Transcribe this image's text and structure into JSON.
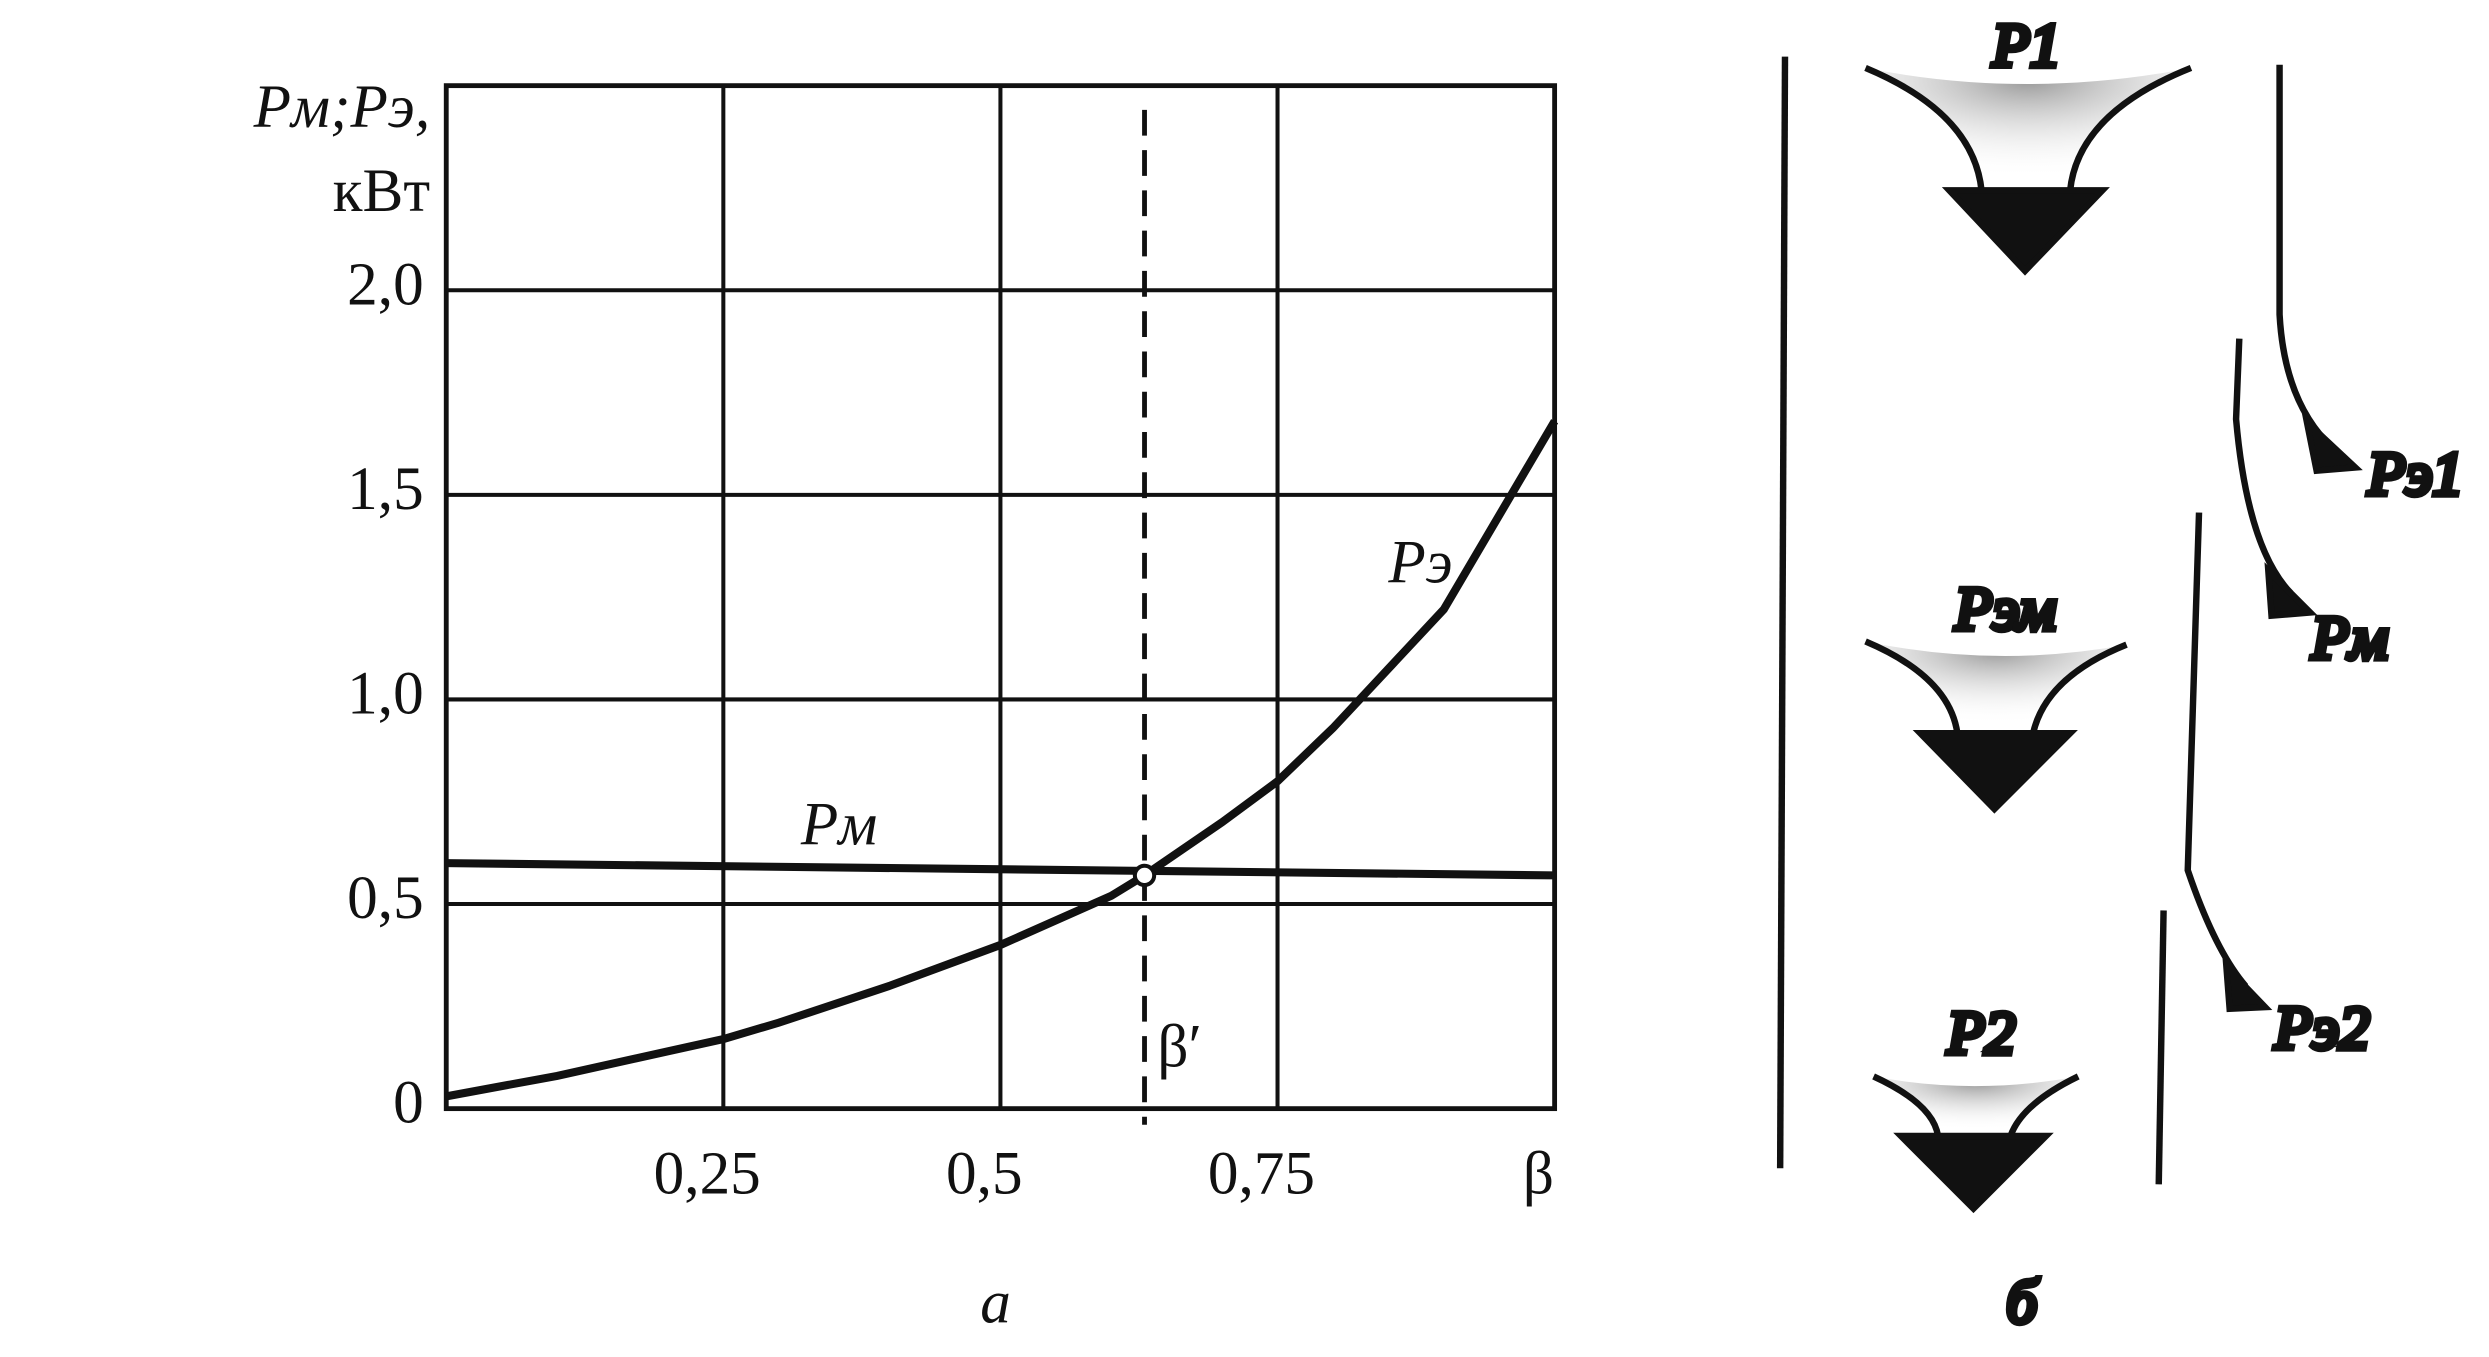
{
  "chart_data": {
    "type": "line",
    "ylabel": [
      "Pм;Pэ,",
      "кВт"
    ],
    "xlim": [
      0,
      1
    ],
    "ylim": [
      0,
      2.5
    ],
    "xticks": [
      {
        "value": 0.25,
        "label": "0,25"
      },
      {
        "value": 0.5,
        "label": "0,5"
      },
      {
        "value": 0.75,
        "label": "0,75"
      },
      {
        "value": 1,
        "label": "β"
      }
    ],
    "yticks": [
      0,
      {
        "value": 0.5,
        "label": "0,5"
      },
      {
        "value": 1,
        "label": "1,0"
      },
      {
        "value": 1.5,
        "label": "1,5"
      },
      {
        "value": 2,
        "label": "2,0"
      }
    ],
    "grid": true,
    "color": "#111111",
    "series": [
      {
        "name": "Pм",
        "x": [
          0,
          1
        ],
        "values": [
          0.6,
          0.57
        ]
      },
      {
        "name": "Pэ",
        "x": [
          0,
          0.1,
          0.2,
          0.25,
          0.3,
          0.4,
          0.5,
          0.6,
          0.63,
          0.7,
          0.75,
          0.8,
          0.9,
          1.0
        ],
        "values": [
          0.03,
          0.08,
          0.14,
          0.17,
          0.21,
          0.3,
          0.4,
          0.52,
          0.57,
          0.7,
          0.8,
          0.93,
          1.22,
          1.68
        ]
      }
    ],
    "annotations": [
      {
        "label": "β′",
        "x": 0.63,
        "y": 0.57
      }
    ],
    "panel_label": "а"
  },
  "diagram": {
    "labels": [
      "P1",
      "Pэм",
      "P2",
      "Pэ1",
      "Pм",
      "Pэ2"
    ],
    "panel_label": "б"
  }
}
